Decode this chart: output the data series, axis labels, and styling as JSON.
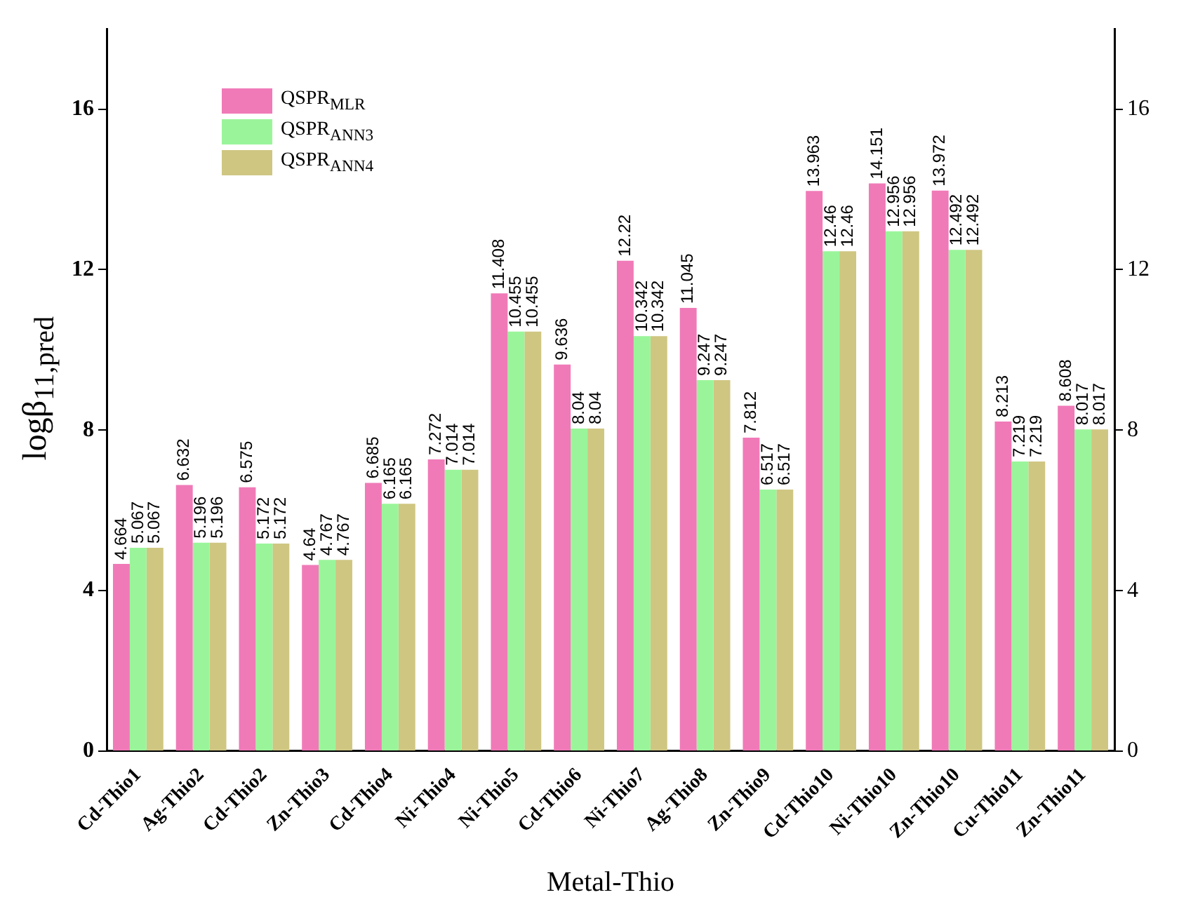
{
  "chart_data": {
    "type": "bar",
    "xlabel": "Metal-Thio",
    "ylabel": "logβ$_{11,pred}$",
    "categories": [
      "Cd-Thio1",
      "Ag-Thio2",
      "Cd-Thio2",
      "Zn-Thio3",
      "Cd-Thio4",
      "Ni-Thio4",
      "Ni-Thio5",
      "Cd-Thio6",
      "Ni-Thio7",
      "Ag-Thio8",
      "Zn-Thio9",
      "Cd-Thio10",
      "Ni-Thio10",
      "Zn-Thio10",
      "Cu-Thio11",
      "Zn-Thio11"
    ],
    "series": [
      {
        "name": "QSPR$_{MLR}$",
        "color": "#f07ab8",
        "values": [
          4.664,
          6.632,
          6.575,
          4.64,
          6.685,
          7.272,
          11.408,
          9.636,
          12.22,
          11.045,
          7.812,
          13.963,
          14.151,
          13.972,
          8.213,
          8.608
        ]
      },
      {
        "name": "QSPR$_{ANN3}$",
        "color": "#9af59a",
        "values": [
          5.067,
          5.196,
          5.172,
          4.767,
          6.165,
          7.014,
          10.455,
          8.04,
          10.342,
          9.247,
          6.517,
          12.46,
          12.956,
          12.492,
          7.219,
          8.017
        ]
      },
      {
        "name": "QSPR$_{ANN4}$",
        "color": "#cfc682",
        "values": [
          5.067,
          5.196,
          5.172,
          4.767,
          6.165,
          7.014,
          10.455,
          8.04,
          10.342,
          9.247,
          6.517,
          12.46,
          12.956,
          12.492,
          7.219,
          8.017
        ]
      }
    ],
    "ylim": [
      0,
      18
    ],
    "yticks": [
      0,
      4,
      8,
      12,
      16
    ],
    "y2lim": [
      0,
      18
    ],
    "y2ticks": [
      0,
      4,
      8,
      12,
      16
    ],
    "grid": false,
    "legend": "top left",
    "data_labels": true
  }
}
